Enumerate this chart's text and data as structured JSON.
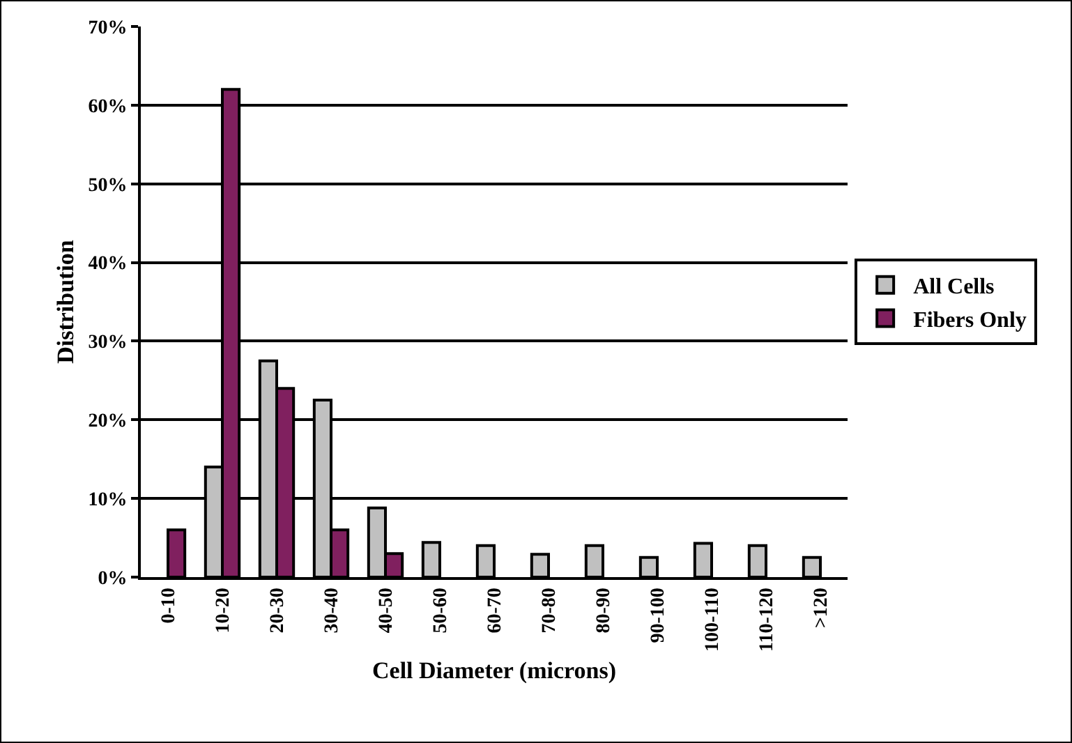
{
  "chart_data": {
    "type": "bar",
    "xlabel": "Cell Diameter (microns)",
    "ylabel": "Distribution",
    "categories": [
      "0-10",
      "10-20",
      "20-30",
      "30-40",
      "40-50",
      "50-60",
      "60-70",
      "70-80",
      "80-90",
      "90-100",
      "100-110",
      "110-120",
      ">120"
    ],
    "series": [
      {
        "name": "All Cells",
        "color": "#c0c0c0",
        "values": [
          null,
          14,
          27.5,
          22.5,
          8.8,
          4.4,
          4,
          2.9,
          4,
          2.5,
          4.3,
          4,
          2.5
        ]
      },
      {
        "name": "Fibers Only",
        "color": "#80205f",
        "values": [
          6,
          62,
          24,
          6,
          3,
          null,
          null,
          null,
          null,
          null,
          null,
          null,
          null
        ]
      }
    ],
    "ylim": [
      0,
      70
    ],
    "yticks": [
      {
        "value": 0,
        "label": "0%"
      },
      {
        "value": 10,
        "label": "10%"
      },
      {
        "value": 20,
        "label": "20%"
      },
      {
        "value": 30,
        "label": "30%"
      },
      {
        "value": 40,
        "label": "40%"
      },
      {
        "value": 50,
        "label": "50%"
      },
      {
        "value": 60,
        "label": "60%"
      },
      {
        "value": 70,
        "label": "70%"
      }
    ],
    "grid": "y",
    "legend": "right"
  }
}
